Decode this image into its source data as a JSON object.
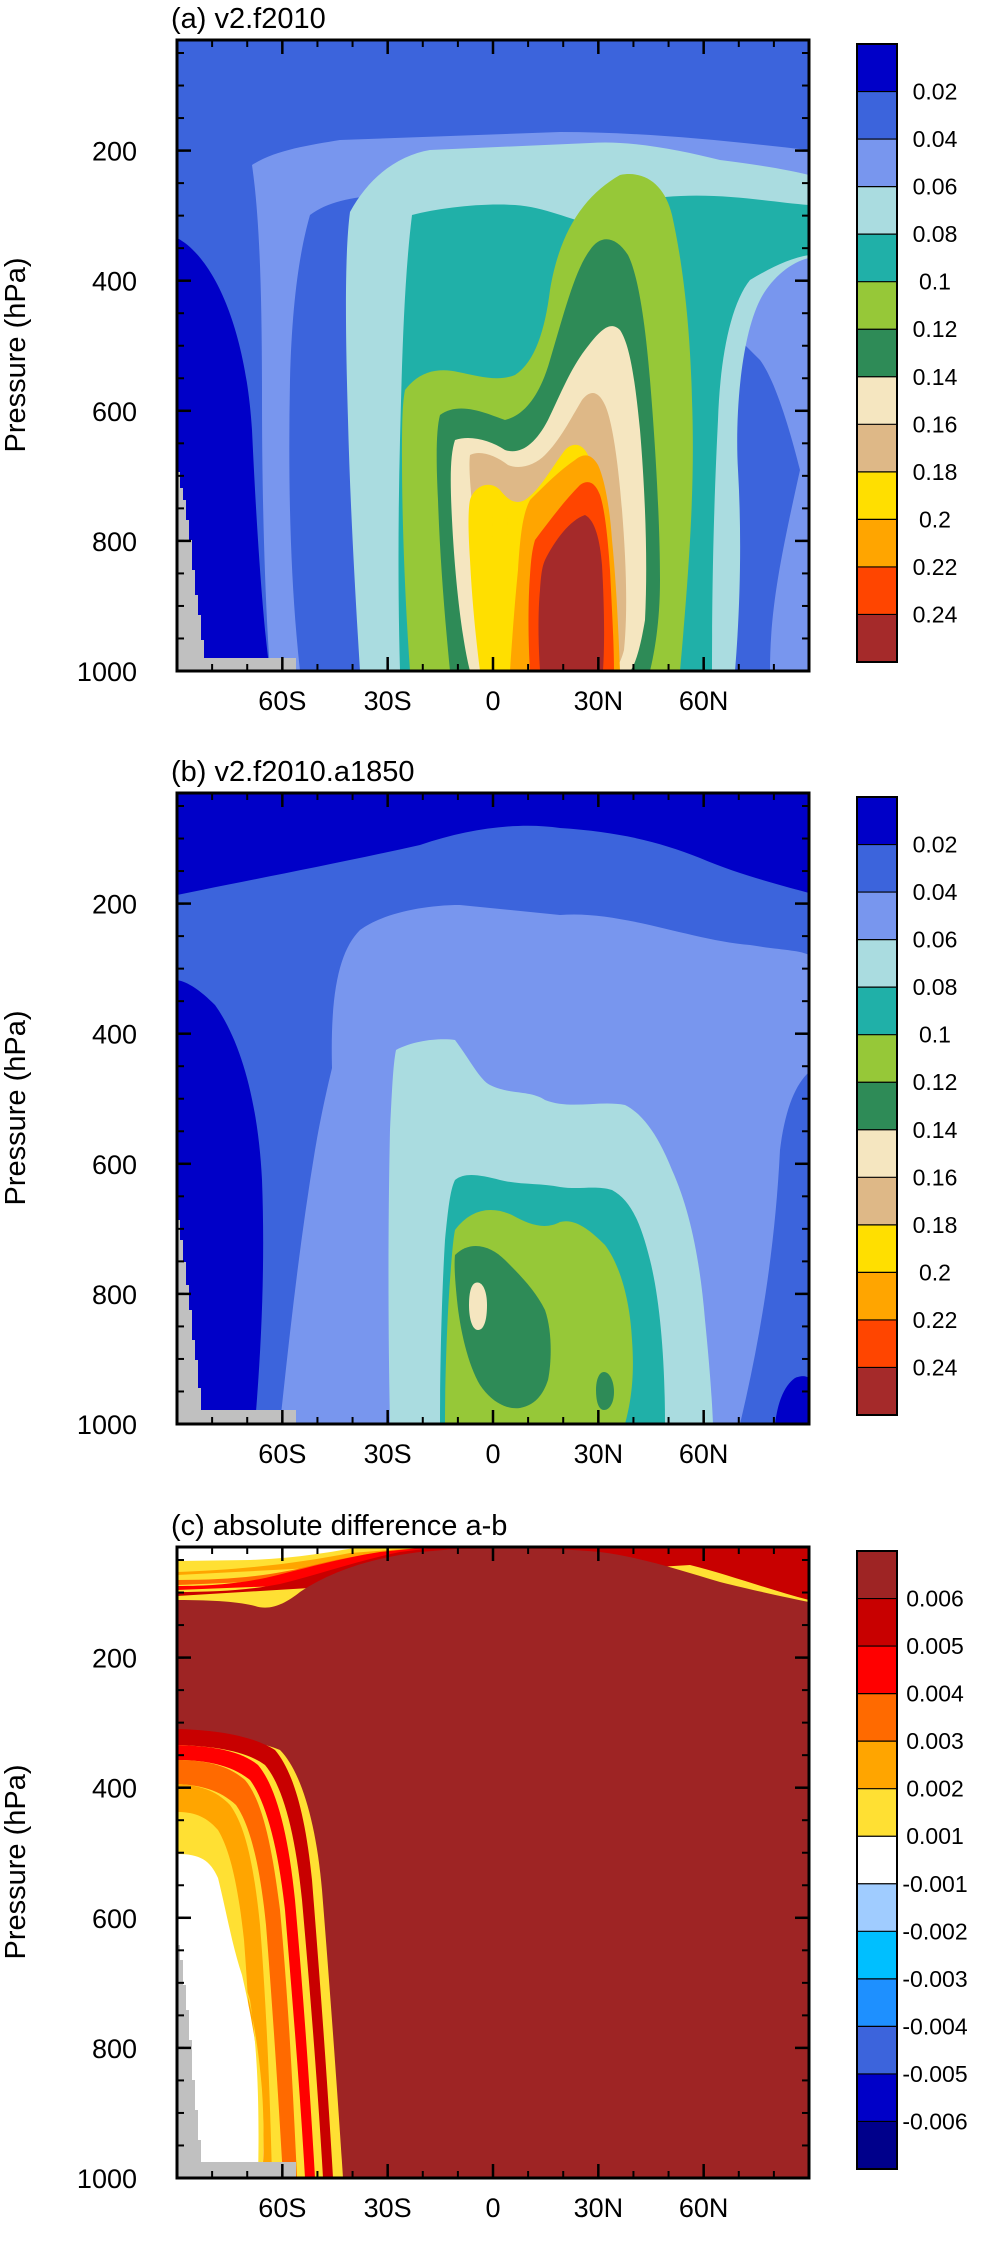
{
  "chart_data": [
    {
      "type": "heatmap",
      "title": "(a) v2.f2010",
      "ylabel": "Pressure (hPa)",
      "xlabel": "",
      "x_range": [
        -90,
        90
      ],
      "y_range": [
        1000,
        30
      ],
      "xticks": [
        -60,
        -30,
        0,
        30,
        60
      ],
      "xtick_labels": [
        "60S",
        "30S",
        "0",
        "30N",
        "60N"
      ],
      "yticks": [
        200,
        400,
        600,
        800,
        1000
      ],
      "ytick_labels": [
        "200",
        "400",
        "600",
        "800",
        "1000"
      ],
      "colorbar": {
        "labels": [
          "0.02",
          "0.04",
          "0.06",
          "0.08",
          "0.1",
          "0.12",
          "0.14",
          "0.16",
          "0.18",
          "0.2",
          "0.22",
          "0.24"
        ],
        "colors": [
          "#0000c8",
          "#3c64dc",
          "#7896ee",
          "#aadce0",
          "#20b0a8",
          "#96c838",
          "#2e8b57",
          "#f5e6c0",
          "#deb887",
          "#ffdf00",
          "#ffa500",
          "#ff4500",
          "#a52a2a"
        ]
      },
      "grid": false
    },
    {
      "type": "heatmap",
      "title": "(b) v2.f2010.a1850",
      "ylabel": "Pressure (hPa)",
      "xlabel": "",
      "x_range": [
        -90,
        90
      ],
      "y_range": [
        1000,
        30
      ],
      "xticks": [
        -60,
        -30,
        0,
        30,
        60
      ],
      "xtick_labels": [
        "60S",
        "30S",
        "0",
        "30N",
        "60N"
      ],
      "yticks": [
        200,
        400,
        600,
        800,
        1000
      ],
      "ytick_labels": [
        "200",
        "400",
        "600",
        "800",
        "1000"
      ],
      "colorbar": {
        "labels": [
          "0.02",
          "0.04",
          "0.06",
          "0.08",
          "0.1",
          "0.12",
          "0.14",
          "0.16",
          "0.18",
          "0.2",
          "0.22",
          "0.24"
        ],
        "colors": [
          "#0000c8",
          "#3c64dc",
          "#7896ee",
          "#aadce0",
          "#20b0a8",
          "#96c838",
          "#2e8b57",
          "#f5e6c0",
          "#deb887",
          "#ffdf00",
          "#ffa500",
          "#ff4500",
          "#a52a2a"
        ]
      },
      "grid": false
    },
    {
      "type": "heatmap",
      "title": "(c) absolute difference a-b",
      "ylabel": "Pressure (hPa)",
      "xlabel": "",
      "x_range": [
        -90,
        90
      ],
      "y_range": [
        1000,
        30
      ],
      "xticks": [
        -60,
        -30,
        0,
        30,
        60
      ],
      "xtick_labels": [
        "60S",
        "30S",
        "0",
        "30N",
        "60N"
      ],
      "yticks": [
        200,
        400,
        600,
        800,
        1000
      ],
      "ytick_labels": [
        "200",
        "400",
        "600",
        "800",
        "1000"
      ],
      "colorbar": {
        "labels": [
          "0.006",
          "0.005",
          "0.004",
          "0.003",
          "0.002",
          "0.001",
          "-0.001",
          "-0.002",
          "-0.003",
          "-0.004",
          "-0.005",
          "-0.006"
        ],
        "colors": [
          "#9e2424",
          "#c80000",
          "#ff0000",
          "#ff6a00",
          "#ffa500",
          "#ffe033",
          "#ffffff",
          "#a0ccff",
          "#00bfff",
          "#1e90ff",
          "#3c64dc",
          "#0000c8",
          "#00008b"
        ]
      },
      "grid": false
    }
  ]
}
